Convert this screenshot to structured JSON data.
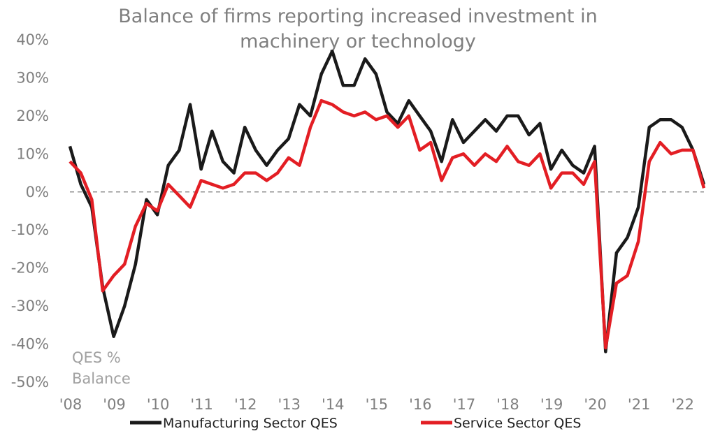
{
  "chart_data": {
    "type": "line",
    "title_lines": [
      "Balance of firms reporting increased investment in",
      "machinery or technology"
    ],
    "ylabel_lines": [
      "QES %",
      "Balance"
    ],
    "xlabel": "",
    "ylim": [
      -50,
      40
    ],
    "yticks": [
      "40%",
      "30%",
      "20%",
      "10%",
      "0%",
      "-10%",
      "-20%",
      "-30%",
      "-40%",
      "-50%"
    ],
    "ytick_values": [
      40,
      30,
      20,
      10,
      0,
      -10,
      -20,
      -30,
      -40,
      -50
    ],
    "xticks": [
      "'08",
      "'09",
      "'10",
      "'11",
      "'12",
      "'13",
      "'14",
      "'15",
      "'16",
      "'17",
      "'18",
      "'19",
      "'20",
      "'21",
      "'22"
    ],
    "xlim": [
      0,
      59
    ],
    "zero_line": "dashed",
    "grid": false,
    "legend_position": "bottom",
    "series": [
      {
        "name": "Manufacturing Sector QES",
        "color": "#1a1a1a",
        "values": [
          12,
          2,
          -4,
          -25,
          -38,
          -30,
          -19,
          -2,
          -6,
          7,
          11,
          23,
          6,
          16,
          8,
          5,
          17,
          11,
          7,
          11,
          14,
          23,
          20,
          31,
          37,
          28,
          28,
          35,
          31,
          21,
          18,
          24,
          20,
          16,
          8,
          19,
          13,
          16,
          19,
          16,
          20,
          20,
          15,
          18,
          6,
          11,
          7,
          5,
          12,
          -42,
          -16,
          -12,
          -4,
          17,
          19,
          19,
          17,
          11,
          2
        ]
      },
      {
        "name": "Service Sector QES",
        "color": "#e31e24",
        "values": [
          8,
          5,
          -2,
          -26,
          -22,
          -19,
          -9,
          -3,
          -5,
          2,
          -1,
          -4,
          3,
          2,
          1,
          2,
          5,
          5,
          3,
          5,
          9,
          7,
          17,
          24,
          23,
          21,
          20,
          21,
          19,
          20,
          17,
          20,
          11,
          13,
          3,
          9,
          10,
          7,
          10,
          8,
          12,
          8,
          7,
          10,
          1,
          5,
          5,
          2,
          8,
          -41,
          -24,
          -22,
          -13,
          8,
          13,
          10,
          11,
          11,
          1
        ]
      }
    ]
  }
}
